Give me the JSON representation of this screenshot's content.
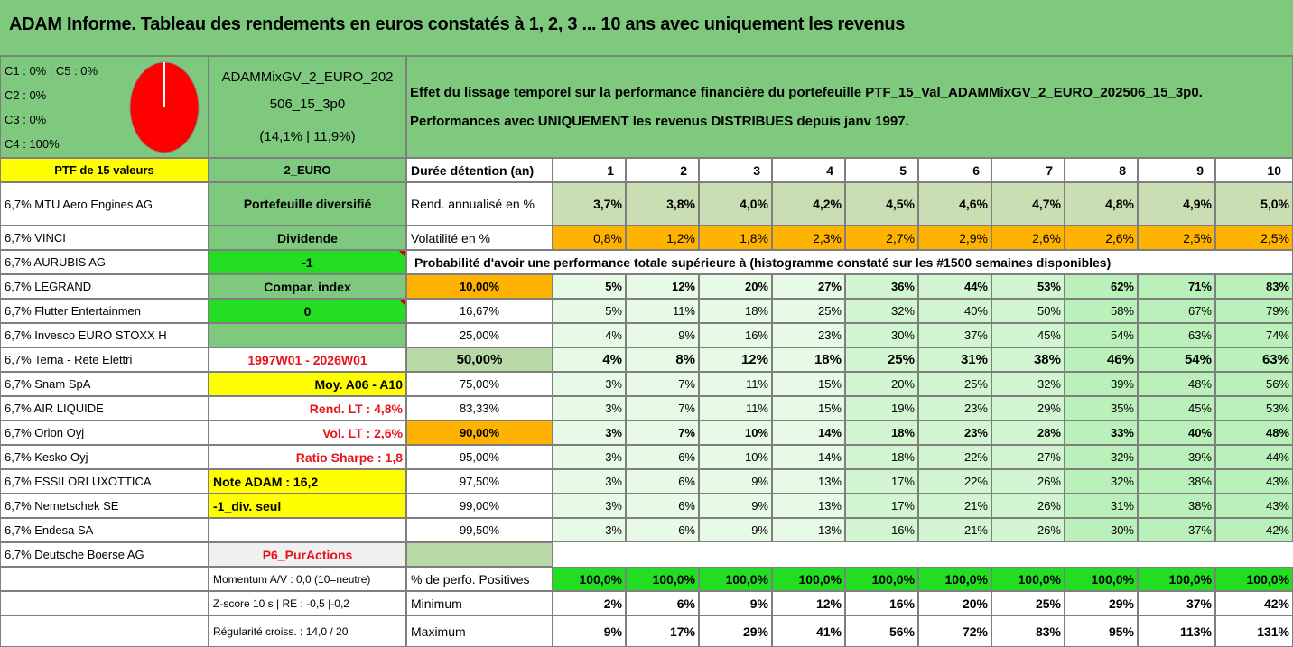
{
  "title": "ADAM Informe. Tableau des rendements en euros constatés à 1, 2, 3 ... 10 ans avec uniquement les revenus",
  "composition": [
    "C1 : 0% | C5 : 0%",
    "C2 : 0%",
    "C3 : 0%",
    "C4 : 100%"
  ],
  "portfolio": {
    "name_line1": "ADAMMixGV_2_EURO_202",
    "name_line2": "506_15_3p0",
    "perf": "(14,1% | 11,9%)"
  },
  "description": {
    "line1": "Effet du lissage temporel sur la performance financière du portefeuille PTF_15_Val_ADAMMixGV_2_EURO_202506_15_3p0.",
    "line2": "Performances avec UNIQUEMENT les revenus DISTRIBUES depuis janv 1997."
  },
  "ptf_header": "PTF de 15 valeurs",
  "currency": "2_EURO",
  "duration_label": "Durée détention (an)",
  "years": [
    "1",
    "2",
    "3",
    "4",
    "5",
    "6",
    "7",
    "8",
    "9",
    "10"
  ],
  "holdings": [
    "6,7% MTU Aero Engines AG",
    "6,7% VINCI",
    "6,7% AURUBIS AG",
    "6,7% LEGRAND",
    "6,7% Flutter Entertainmen",
    "6,7% Invesco EURO STOXX H",
    "6,7% Terna - Rete Elettri",
    "6,7% Snam SpA",
    "6,7% AIR LIQUIDE",
    "6,7% Orion Oyj",
    "6,7% Kesko Oyj",
    "6,7% ESSILORLUXOTTICA",
    "6,7% Nemetschek SE",
    "6,7% Endesa SA",
    "6,7% Deutsche Boerse AG"
  ],
  "info": {
    "diversified": "Portefeuille diversifié",
    "dividend": "Dividende",
    "dividend_value": "-1",
    "compar_index": "Compar. index",
    "compar_value": "0",
    "period": "1997W01 - 2026W01",
    "moy": "Moy. A06 - A10",
    "rend_lt": "Rend. LT : 4,8%",
    "vol_lt": "Vol. LT : 2,6%",
    "sharpe": "Ratio Sharpe : 1,8",
    "note": "Note ADAM : 16,2",
    "div_seul": "-1_div. seul",
    "pur": "P6_PurActions"
  },
  "rend_label": "Rend. annualisé en %",
  "rend": [
    "3,7%",
    "3,8%",
    "4,0%",
    "4,2%",
    "4,5%",
    "4,6%",
    "4,7%",
    "4,8%",
    "4,9%",
    "5,0%"
  ],
  "vol_label": "Volatilité en %",
  "vol": [
    "0,8%",
    "1,2%",
    "1,8%",
    "2,3%",
    "2,7%",
    "2,9%",
    "2,6%",
    "2,6%",
    "2,5%",
    "2,5%"
  ],
  "prob_title": "Probabilité d'avoir une performance totale supérieure à (histogramme constaté sur les #1500 semaines disponibles)",
  "prob_rows": [
    {
      "p": "10,00%",
      "v": [
        "5%",
        "12%",
        "20%",
        "27%",
        "36%",
        "44%",
        "53%",
        "62%",
        "71%",
        "83%"
      ]
    },
    {
      "p": "16,67%",
      "v": [
        "5%",
        "11%",
        "18%",
        "25%",
        "32%",
        "40%",
        "50%",
        "58%",
        "67%",
        "79%"
      ]
    },
    {
      "p": "25,00%",
      "v": [
        "4%",
        "9%",
        "16%",
        "23%",
        "30%",
        "37%",
        "45%",
        "54%",
        "63%",
        "74%"
      ]
    },
    {
      "p": "50,00%",
      "v": [
        "4%",
        "8%",
        "12%",
        "18%",
        "25%",
        "31%",
        "38%",
        "46%",
        "54%",
        "63%"
      ]
    },
    {
      "p": "75,00%",
      "v": [
        "3%",
        "7%",
        "11%",
        "15%",
        "20%",
        "25%",
        "32%",
        "39%",
        "48%",
        "56%"
      ]
    },
    {
      "p": "83,33%",
      "v": [
        "3%",
        "7%",
        "11%",
        "15%",
        "19%",
        "23%",
        "29%",
        "35%",
        "45%",
        "53%"
      ]
    },
    {
      "p": "90,00%",
      "v": [
        "3%",
        "7%",
        "10%",
        "14%",
        "18%",
        "23%",
        "28%",
        "33%",
        "40%",
        "48%"
      ]
    },
    {
      "p": "95,00%",
      "v": [
        "3%",
        "6%",
        "10%",
        "14%",
        "18%",
        "22%",
        "27%",
        "32%",
        "39%",
        "44%"
      ]
    },
    {
      "p": "97,50%",
      "v": [
        "3%",
        "6%",
        "9%",
        "13%",
        "17%",
        "22%",
        "26%",
        "32%",
        "38%",
        "43%"
      ]
    },
    {
      "p": "99,00%",
      "v": [
        "3%",
        "6%",
        "9%",
        "13%",
        "17%",
        "21%",
        "26%",
        "31%",
        "38%",
        "43%"
      ]
    },
    {
      "p": "99,50%",
      "v": [
        "3%",
        "6%",
        "9%",
        "13%",
        "16%",
        "21%",
        "26%",
        "30%",
        "37%",
        "42%"
      ]
    }
  ],
  "stats": [
    {
      "left": "Momentum A/V : 0,0 (10=neutre)",
      "label": "% de perfo. Positives",
      "v": [
        "100,0%",
        "100,0%",
        "100,0%",
        "100,0%",
        "100,0%",
        "100,0%",
        "100,0%",
        "100,0%",
        "100,0%",
        "100,0%"
      ]
    },
    {
      "left": "Z-score 10 s | RE : -0,5 |-0,2",
      "label": "Minimum",
      "v": [
        "2%",
        "6%",
        "9%",
        "12%",
        "16%",
        "20%",
        "25%",
        "29%",
        "37%",
        "42%"
      ]
    },
    {
      "left": "Régularité croiss. : 14,0 / 20",
      "label": "Maximum",
      "v": [
        "9%",
        "17%",
        "29%",
        "41%",
        "56%",
        "72%",
        "83%",
        "95%",
        "113%",
        "131%"
      ]
    }
  ],
  "colors": {
    "header_green": "#7fc97f",
    "bright_green": "#22dd22",
    "yellow": "#ffff00",
    "orange": "#ffb300",
    "red_text": "#e8141b",
    "pie_red": "#ff0000"
  }
}
